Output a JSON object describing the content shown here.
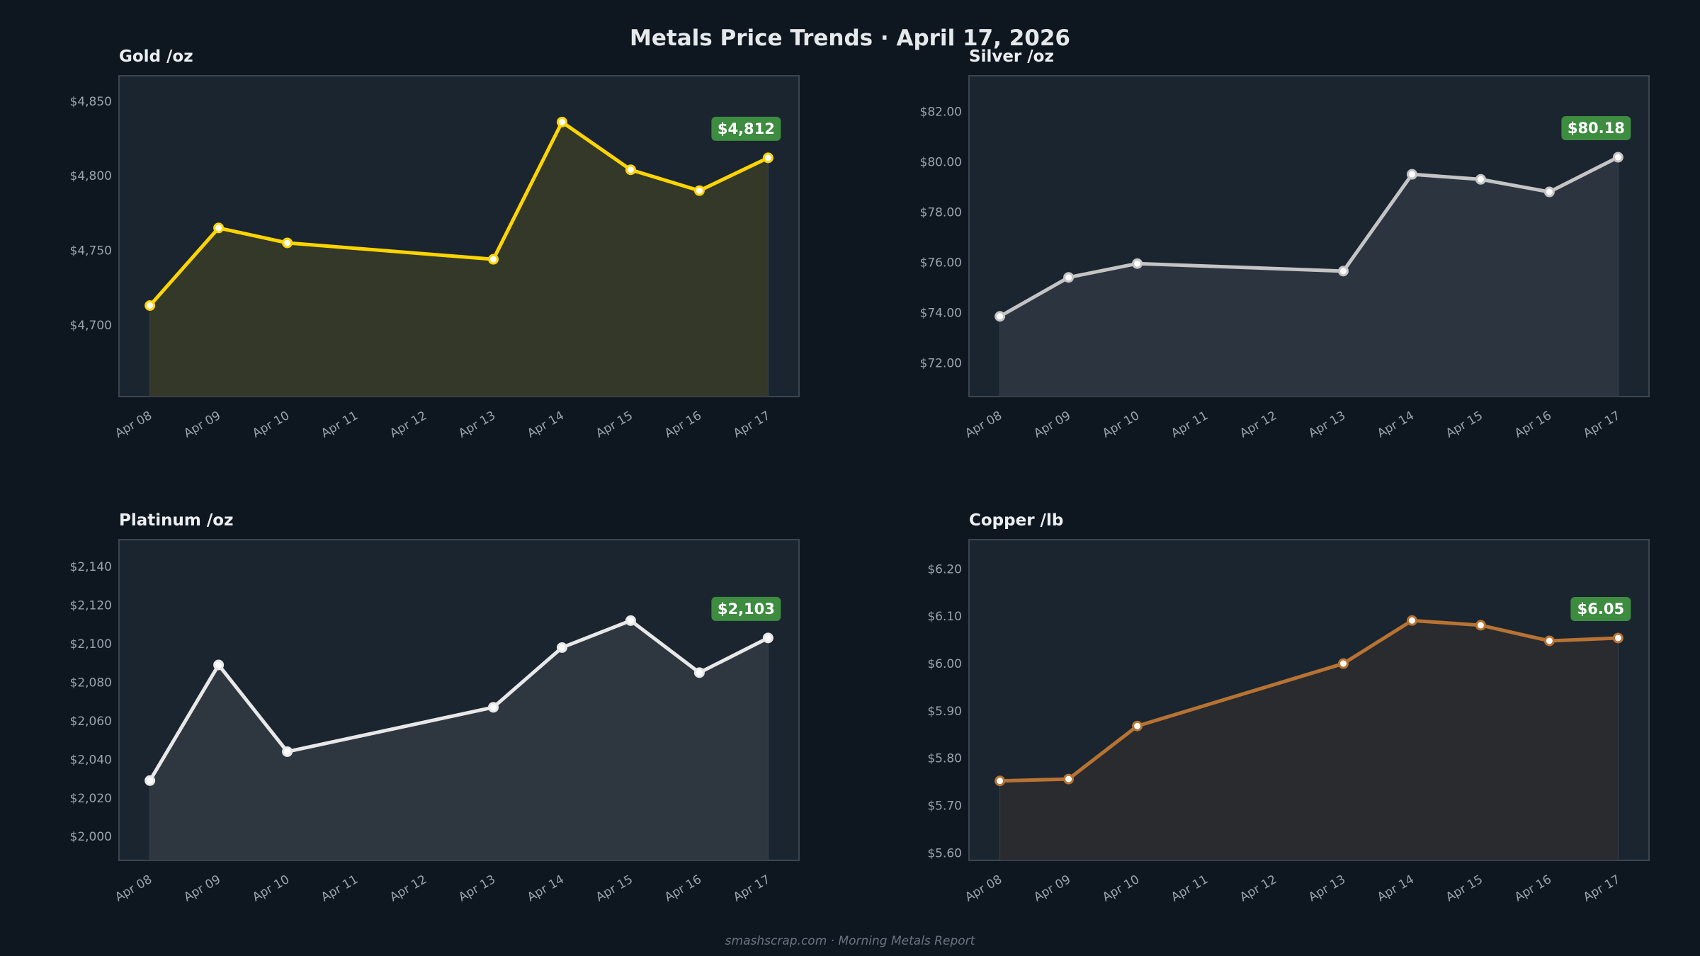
{
  "title": "Metals Price Trends  ·  April 17, 2026",
  "footer": "smashscrap.com  ·  Morning Metals Report",
  "colors": {
    "background": "#0e1720",
    "panel": "#1b2530",
    "border": "#3a4550",
    "badge": "#3d8c40"
  },
  "chart_data": [
    {
      "type": "area",
      "title": "Gold  /oz",
      "x": [
        "2026-04-08",
        "2026-04-09",
        "2026-04-10",
        "2026-04-13",
        "2026-04-14",
        "2026-04-15",
        "2026-04-16",
        "2026-04-17"
      ],
      "values": [
        4713,
        4765,
        4755,
        4744,
        4836,
        4804,
        4790,
        4812
      ],
      "xticks": [
        "Apr 08",
        "Apr 09",
        "Apr 10",
        "Apr 11",
        "Apr 12",
        "Apr 13",
        "Apr 14",
        "Apr 15",
        "Apr 16",
        "Apr 17"
      ],
      "yticks": [
        4700,
        4750,
        4800,
        4850
      ],
      "ytick_labels": [
        "$4,700",
        "$4,750",
        "$4,800",
        "$4,850"
      ],
      "ylim": [
        4652,
        4867
      ],
      "badge": "$4,812",
      "line_color": "#ffd500",
      "fill_color": "#343828",
      "grid": false
    },
    {
      "type": "area",
      "title": "Silver  /oz",
      "x": [
        "2026-04-08",
        "2026-04-09",
        "2026-04-10",
        "2026-04-13",
        "2026-04-14",
        "2026-04-15",
        "2026-04-16",
        "2026-04-17"
      ],
      "values": [
        73.85,
        75.4,
        75.95,
        75.65,
        79.5,
        79.3,
        78.8,
        80.18
      ],
      "xticks": [
        "Apr 08",
        "Apr 09",
        "Apr 10",
        "Apr 11",
        "Apr 12",
        "Apr 13",
        "Apr 14",
        "Apr 15",
        "Apr 16",
        "Apr 17"
      ],
      "yticks": [
        72,
        74,
        76,
        78,
        80,
        82
      ],
      "ytick_labels": [
        "$72.00",
        "$74.00",
        "$76.00",
        "$78.00",
        "$80.00",
        "$82.00"
      ],
      "ylim": [
        70.66,
        83.42
      ],
      "badge": "$80.18",
      "line_color": "#c4c4c4",
      "fill_color": "#2b343f",
      "grid": false
    },
    {
      "type": "area",
      "title": "Platinum  /oz",
      "x": [
        "2026-04-08",
        "2026-04-09",
        "2026-04-10",
        "2026-04-13",
        "2026-04-14",
        "2026-04-15",
        "2026-04-16",
        "2026-04-17"
      ],
      "values": [
        2029,
        2089,
        2044,
        2067,
        2098,
        2112,
        2085,
        2103
      ],
      "xticks": [
        "Apr 08",
        "Apr 09",
        "Apr 10",
        "Apr 11",
        "Apr 12",
        "Apr 13",
        "Apr 14",
        "Apr 15",
        "Apr 16",
        "Apr 17"
      ],
      "yticks": [
        2000,
        2020,
        2040,
        2060,
        2080,
        2100,
        2120,
        2140
      ],
      "ytick_labels": [
        "$2,000",
        "$2,020",
        "$2,040",
        "$2,060",
        "$2,080",
        "$2,100",
        "$2,120",
        "$2,140"
      ],
      "ylim": [
        1987.6,
        2154
      ],
      "badge": "$2,103",
      "line_color": "#e8e8e8",
      "fill_color": "#2e373f",
      "grid": false
    },
    {
      "type": "area",
      "title": "Copper  /lb",
      "x": [
        "2026-04-08",
        "2026-04-09",
        "2026-04-10",
        "2026-04-13",
        "2026-04-14",
        "2026-04-15",
        "2026-04-16",
        "2026-04-17"
      ],
      "values": [
        5.752,
        5.756,
        5.868,
        6.0,
        6.091,
        6.081,
        6.048,
        6.054
      ],
      "xticks": [
        "Apr 08",
        "Apr 09",
        "Apr 10",
        "Apr 11",
        "Apr 12",
        "Apr 13",
        "Apr 14",
        "Apr 15",
        "Apr 16",
        "Apr 17"
      ],
      "yticks": [
        5.6,
        5.7,
        5.8,
        5.9,
        6.0,
        6.1,
        6.2
      ],
      "ytick_labels": [
        "$5.60",
        "$5.70",
        "$5.80",
        "$5.90",
        "$6.00",
        "$6.10",
        "$6.20"
      ],
      "ylim": [
        5.584,
        6.262
      ],
      "badge": "$6.05",
      "line_color": "#b87333",
      "fill_color": "#2a2b2f",
      "grid": false
    }
  ]
}
